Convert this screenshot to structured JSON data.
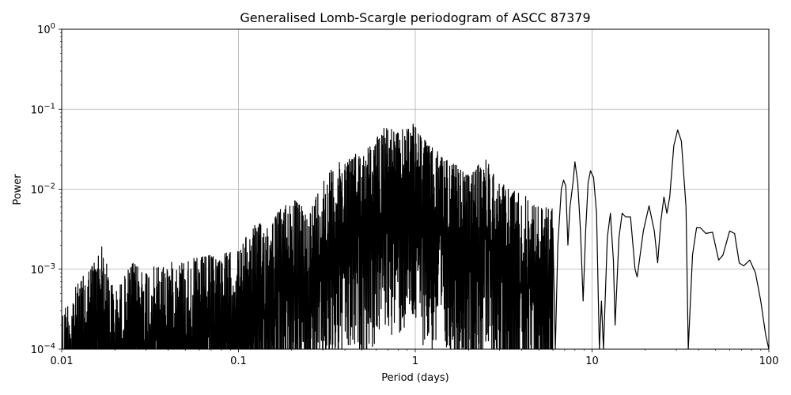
{
  "chart_data": {
    "type": "line",
    "title": "Generalised Lomb-Scargle periodogram of ASCC 87379",
    "xlabel": "Period (days)",
    "ylabel": "Power",
    "xscale": "log",
    "yscale": "log",
    "xlim": [
      0.01,
      100
    ],
    "ylim": [
      0.0001,
      1
    ],
    "grid": true,
    "x_ticks": [
      {
        "value": 0.01,
        "label": "0.01"
      },
      {
        "value": 0.1,
        "label": "0.1"
      },
      {
        "value": 1,
        "label": "1"
      },
      {
        "value": 10,
        "label": "10"
      },
      {
        "value": 100,
        "label": "100"
      }
    ],
    "y_ticks": [
      {
        "value": 0.0001,
        "base": "10",
        "exp": "−4"
      },
      {
        "value": 0.001,
        "base": "10",
        "exp": "−3"
      },
      {
        "value": 0.01,
        "base": "10",
        "exp": "−2"
      },
      {
        "value": 0.1,
        "base": "10",
        "exp": "−1"
      },
      {
        "value": 1,
        "base": "10",
        "exp": "0"
      }
    ],
    "line_color": "#000000",
    "series": [
      {
        "name": "",
        "envelope": [
          {
            "x": 0.01,
            "y_max": 0.0003
          },
          {
            "x": 0.012,
            "y_max": 0.0006
          },
          {
            "x": 0.016,
            "y_max": 0.0015
          },
          {
            "x": 0.0165,
            "y_max": 0.0023
          },
          {
            "x": 0.02,
            "y_max": 0.0005
          },
          {
            "x": 0.025,
            "y_max": 0.0012
          },
          {
            "x": 0.03,
            "y_max": 0.001
          },
          {
            "x": 0.04,
            "y_max": 0.0012
          },
          {
            "x": 0.05,
            "y_max": 0.0013
          },
          {
            "x": 0.07,
            "y_max": 0.0015
          },
          {
            "x": 0.1,
            "y_max": 0.0017
          },
          {
            "x": 0.12,
            "y_max": 0.0035
          },
          {
            "x": 0.15,
            "y_max": 0.004
          },
          {
            "x": 0.2,
            "y_max": 0.008
          },
          {
            "x": 0.25,
            "y_max": 0.005
          },
          {
            "x": 0.3,
            "y_max": 0.014
          },
          {
            "x": 0.4,
            "y_max": 0.025
          },
          {
            "x": 0.5,
            "y_max": 0.03
          },
          {
            "x": 0.6,
            "y_max": 0.04
          },
          {
            "x": 0.65,
            "y_max": 0.07
          },
          {
            "x": 0.8,
            "y_max": 0.05
          },
          {
            "x": 0.95,
            "y_max": 0.07
          },
          {
            "x": 1.2,
            "y_max": 0.035
          },
          {
            "x": 1.5,
            "y_max": 0.025
          },
          {
            "x": 2.0,
            "y_max": 0.015
          },
          {
            "x": 2.5,
            "y_max": 0.025
          },
          {
            "x": 3.0,
            "y_max": 0.012
          },
          {
            "x": 4.0,
            "y_max": 0.009
          },
          {
            "x": 5.0,
            "y_max": 0.006
          }
        ],
        "smooth_points": [
          [
            6.2,
            0.0001
          ],
          [
            6.4,
            0.002
          ],
          [
            6.7,
            0.01
          ],
          [
            6.9,
            0.013
          ],
          [
            7.1,
            0.011
          ],
          [
            7.3,
            0.002
          ],
          [
            7.5,
            0.006
          ],
          [
            7.8,
            0.012
          ],
          [
            8.0,
            0.022
          ],
          [
            8.3,
            0.012
          ],
          [
            8.6,
            0.003
          ],
          [
            8.9,
            0.0004
          ],
          [
            9.2,
            0.003
          ],
          [
            9.5,
            0.012
          ],
          [
            9.8,
            0.017
          ],
          [
            10.2,
            0.014
          ],
          [
            10.6,
            0.005
          ],
          [
            11.0,
            0.0001
          ],
          [
            11.3,
            0.0004
          ],
          [
            11.6,
            0.0001
          ],
          [
            12.2,
            0.0025
          ],
          [
            12.7,
            0.005
          ],
          [
            13.2,
            0.0013
          ],
          [
            13.5,
            0.0002
          ],
          [
            14.2,
            0.0025
          ],
          [
            14.8,
            0.005
          ],
          [
            15.5,
            0.0045
          ],
          [
            16.5,
            0.0045
          ],
          [
            17.5,
            0.001
          ],
          [
            18.0,
            0.0008
          ],
          [
            19.5,
            0.003
          ],
          [
            21.0,
            0.0062
          ],
          [
            22.5,
            0.003
          ],
          [
            23.5,
            0.0012
          ],
          [
            24.5,
            0.004
          ],
          [
            25.5,
            0.008
          ],
          [
            26.5,
            0.005
          ],
          [
            27.5,
            0.008
          ],
          [
            29.0,
            0.035
          ],
          [
            30.5,
            0.055
          ],
          [
            32.0,
            0.04
          ],
          [
            34.0,
            0.006
          ],
          [
            35.0,
            0.0001
          ],
          [
            37.0,
            0.0015
          ],
          [
            39.0,
            0.0033
          ],
          [
            41.0,
            0.0033
          ],
          [
            44.0,
            0.0028
          ],
          [
            48.0,
            0.0029
          ],
          [
            52.0,
            0.0013
          ],
          [
            55.0,
            0.0015
          ],
          [
            60.0,
            0.003
          ],
          [
            64.0,
            0.0028
          ],
          [
            68.0,
            0.0012
          ],
          [
            72.0,
            0.0011
          ],
          [
            78.0,
            0.0013
          ],
          [
            84.0,
            0.0009
          ],
          [
            90.0,
            0.0004
          ],
          [
            96.0,
            0.00015
          ],
          [
            100.0,
            0.0001
          ]
        ]
      }
    ]
  }
}
